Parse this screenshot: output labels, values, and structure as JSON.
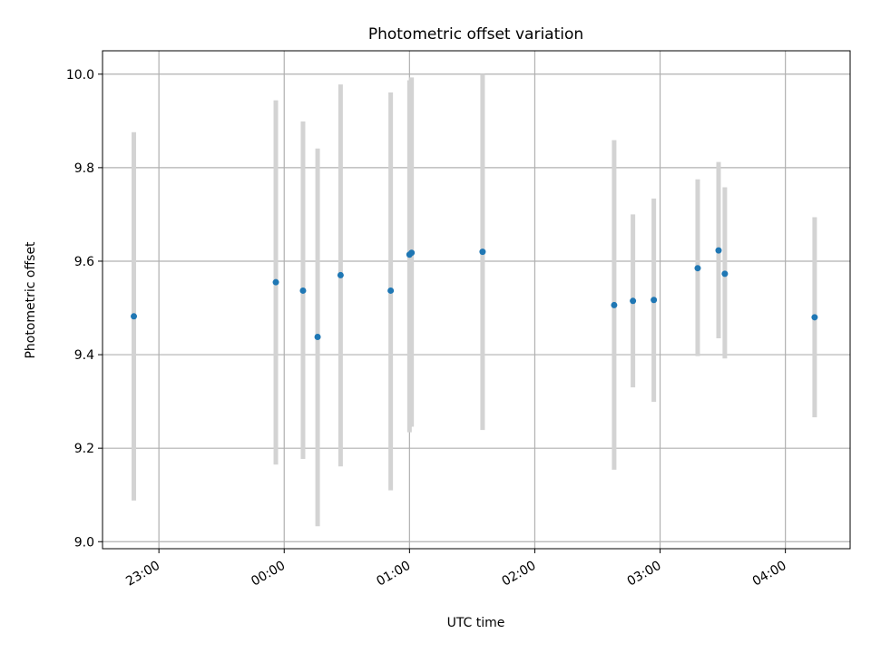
{
  "chart_data": {
    "type": "scatter",
    "title": "Photometric offset variation",
    "xlabel": "UTC time",
    "ylabel": "Photometric offset",
    "x_unit": "UTC clock time (errorbar plot, points with vertical error bars)",
    "xlim": [
      "22:33",
      "04:31"
    ],
    "ylim": [
      8.985,
      10.05
    ],
    "x_ticks": [
      "23:00",
      "00:00",
      "01:00",
      "02:00",
      "03:00",
      "04:00"
    ],
    "y_ticks": [
      "9.0",
      "9.2",
      "9.4",
      "9.6",
      "9.8",
      "10.0"
    ],
    "grid": true,
    "legend": "none",
    "series": [
      {
        "points": [
          {
            "x": "22:48",
            "y": 9.482,
            "ylow": 9.088,
            "yhigh": 9.876
          },
          {
            "x": "23:56",
            "y": 9.555,
            "ylow": 9.165,
            "yhigh": 9.944
          },
          {
            "x": "00:09",
            "y": 9.537,
            "ylow": 9.177,
            "yhigh": 9.899
          },
          {
            "x": "00:16",
            "y": 9.438,
            "ylow": 9.033,
            "yhigh": 9.841
          },
          {
            "x": "00:27",
            "y": 9.57,
            "ylow": 9.161,
            "yhigh": 9.978
          },
          {
            "x": "00:51",
            "y": 9.537,
            "ylow": 9.11,
            "yhigh": 9.961
          },
          {
            "x": "01:00",
            "y": 9.614,
            "ylow": 9.234,
            "yhigh": 9.987
          },
          {
            "x": "01:01",
            "y": 9.618,
            "ylow": 9.246,
            "yhigh": 9.993
          },
          {
            "x": "01:35",
            "y": 9.62,
            "ylow": 9.239,
            "yhigh": 10.0
          },
          {
            "x": "02:38",
            "y": 9.506,
            "ylow": 9.154,
            "yhigh": 9.859
          },
          {
            "x": "02:47",
            "y": 9.515,
            "ylow": 9.33,
            "yhigh": 9.7
          },
          {
            "x": "02:57",
            "y": 9.517,
            "ylow": 9.299,
            "yhigh": 9.734
          },
          {
            "x": "03:18",
            "y": 9.585,
            "ylow": 9.397,
            "yhigh": 9.775
          },
          {
            "x": "03:28",
            "y": 9.623,
            "ylow": 9.435,
            "yhigh": 9.812
          },
          {
            "x": "03:31",
            "y": 9.573,
            "ylow": 9.392,
            "yhigh": 9.758
          },
          {
            "x": "04:14",
            "y": 9.48,
            "ylow": 9.266,
            "yhigh": 9.694
          }
        ]
      }
    ]
  },
  "colors": {
    "marker": "#1f77b4",
    "errorbar": "#d3d3d3",
    "grid": "#b0b0b0",
    "axes": "#000000",
    "background": "#ffffff"
  }
}
